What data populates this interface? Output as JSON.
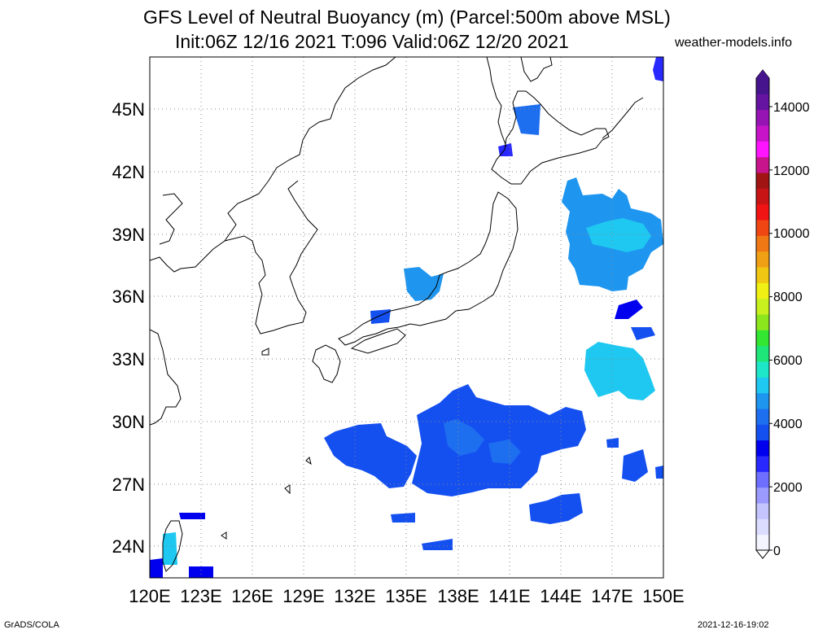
{
  "title": {
    "line1": "GFS Level of Neutral Buoyancy (m) (Parcel:500m above MSL)",
    "line2": "Init:06Z 12/16 2021 T:096 Valid:06Z 12/20 2021"
  },
  "source": "weather-models.info",
  "footer": {
    "software": "GrADS/COLA",
    "timestamp": "2021-12-16-19:02"
  },
  "map": {
    "lon_range": [
      120,
      150
    ],
    "lat_range": [
      22.5,
      47.5
    ],
    "lon_ticks": [
      "120E",
      "123E",
      "126E",
      "129E",
      "132E",
      "135E",
      "138E",
      "141E",
      "144E",
      "147E",
      "150E"
    ],
    "lat_ticks": [
      "45N",
      "42N",
      "39N",
      "36N",
      "33N",
      "30N",
      "27N",
      "24N"
    ],
    "grid": true
  },
  "colorbar": {
    "labels": [
      "14000",
      "12000",
      "10000",
      "8000",
      "6000",
      "4000",
      "2000",
      "0"
    ],
    "colors": [
      "#f4f4ff",
      "#dcdcff",
      "#c4c4ff",
      "#9a9aff",
      "#6e6eff",
      "#2828ff",
      "#0000ee",
      "#1450f0",
      "#1e6ef0",
      "#1e96f0",
      "#1ec8f0",
      "#1ee6c8",
      "#1ee678",
      "#32e632",
      "#8ce61e",
      "#c8f01e",
      "#f0f014",
      "#f0c814",
      "#f0a014",
      "#f07814",
      "#f04614",
      "#f01414",
      "#c81414",
      "#a01414",
      "#c8148c",
      "#ff14ff",
      "#c814c8",
      "#9614b4",
      "#6414a0",
      "#46148c"
    ]
  }
}
